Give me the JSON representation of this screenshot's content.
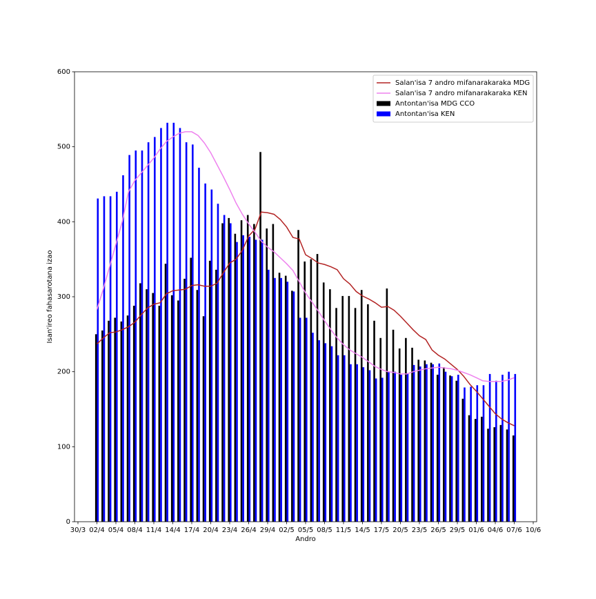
{
  "chart_data": {
    "type": "bar",
    "x_label": "Andro",
    "y_label": "Isan'ireo fahasarotana izao",
    "x": [
      "02/4",
      "03/4",
      "04/4",
      "05/4",
      "06/4",
      "07/4",
      "08/4",
      "09/4",
      "10/4",
      "11/4",
      "12/4",
      "13/4",
      "14/4",
      "15/4",
      "16/4",
      "17/4",
      "18/4",
      "19/4",
      "20/4",
      "21/4",
      "22/4",
      "23/4",
      "24/4",
      "25/4",
      "26/4",
      "27/4",
      "28/4",
      "29/4",
      "30/4",
      "01/5",
      "02/5",
      "03/5",
      "04/5",
      "05/5",
      "06/5",
      "07/5",
      "08/5",
      "09/5",
      "10/5",
      "11/5",
      "12/5",
      "13/5",
      "14/5",
      "15/5",
      "16/5",
      "17/5",
      "18/5",
      "19/5",
      "20/5",
      "21/5",
      "22/5",
      "23/5",
      "24/5",
      "25/5",
      "26/5",
      "27/5",
      "28/5",
      "29/5",
      "30/5",
      "31/5",
      "01/6",
      "02/6",
      "03/6",
      "04/6",
      "05/6",
      "06/6",
      "07/6"
    ],
    "series": [
      {
        "name": "Salan'isa 7 andro mifanarakaraka MDG",
        "type": "line",
        "color": "#b22222",
        "values": [
          237,
          245,
          252,
          253,
          256,
          260,
          266,
          276,
          285,
          290,
          292,
          304,
          308,
          309,
          310,
          315,
          316,
          314,
          314,
          318,
          332,
          345,
          350,
          362,
          381,
          390,
          413,
          412,
          410,
          403,
          393,
          379,
          377,
          356,
          351,
          345,
          343,
          340,
          336,
          324,
          317,
          307,
          301,
          297,
          292,
          286,
          287,
          282,
          274,
          265,
          256,
          248,
          243,
          229,
          222,
          217,
          210,
          203,
          194,
          183,
          174,
          164,
          154,
          144,
          137,
          132,
          128
        ]
      },
      {
        "name": "Salan'isa 7 andro mifanarakaraka KEN",
        "type": "line",
        "color": "#ee82ee",
        "values": [
          283,
          310,
          340,
          370,
          400,
          440,
          455,
          465,
          475,
          485,
          497,
          507,
          513,
          518,
          520,
          520,
          515,
          505,
          492,
          476,
          460,
          443,
          425,
          410,
          397,
          386,
          374,
          366,
          360,
          352,
          344,
          335,
          320,
          305,
          293,
          281,
          268,
          256,
          245,
          236,
          229,
          224,
          219,
          213,
          207,
          203,
          200,
          199,
          197,
          197,
          200,
          202,
          204,
          205,
          206,
          205,
          204,
          202,
          199,
          196,
          192,
          188,
          187,
          187,
          187,
          189,
          192
        ]
      },
      {
        "name": "Antontan'isa MDG CCO",
        "type": "bar",
        "color": "#000000",
        "values": [
          250,
          255,
          268,
          272,
          267,
          275,
          288,
          318,
          310,
          305,
          288,
          344,
          302,
          295,
          324,
          352,
          309,
          274,
          348,
          336,
          398,
          405,
          384,
          402,
          409,
          397,
          493,
          391,
          397,
          332,
          328,
          308,
          389,
          347,
          350,
          357,
          319,
          310,
          285,
          301,
          301,
          285,
          309,
          290,
          268,
          245,
          311,
          256,
          231,
          245,
          232,
          216,
          215,
          212,
          196,
          206,
          195,
          188,
          164,
          142,
          137,
          140,
          124,
          126,
          129,
          123,
          115
        ]
      },
      {
        "name": "Antontan'isa KEN",
        "type": "bar",
        "color": "#0000ff",
        "values": [
          431,
          434,
          434,
          440,
          462,
          489,
          495,
          495,
          506,
          513,
          525,
          532,
          532,
          525,
          506,
          503,
          472,
          451,
          443,
          424,
          409,
          398,
          373,
          382,
          380,
          376,
          376,
          336,
          325,
          325,
          320,
          307,
          272,
          272,
          252,
          242,
          238,
          234,
          222,
          222,
          210,
          210,
          206,
          202,
          191,
          192,
          200,
          200,
          196,
          198,
          209,
          207,
          210,
          210,
          211,
          200,
          194,
          196,
          179,
          180,
          182,
          182,
          197,
          188,
          196,
          200,
          197
        ]
      }
    ],
    "xlim": [
      "30/3",
      "10/6"
    ],
    "xticks": [
      "30/3",
      "02/4",
      "05/4",
      "08/4",
      "11/4",
      "14/4",
      "17/4",
      "20/4",
      "23/4",
      "26/4",
      "29/4",
      "02/5",
      "05/5",
      "08/5",
      "11/5",
      "14/5",
      "17/5",
      "20/5",
      "23/5",
      "26/5",
      "29/5",
      "01/6",
      "04/6",
      "07/6",
      "10/6"
    ],
    "ylim": [
      0,
      600
    ],
    "yticks": [
      0,
      100,
      200,
      300,
      400,
      500,
      600
    ],
    "legend": "upper right"
  }
}
